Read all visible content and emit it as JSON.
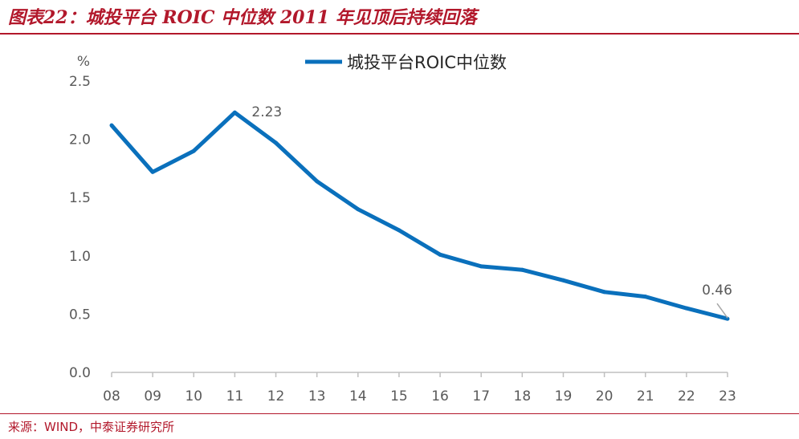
{
  "figure": {
    "title": "图表22：城投平台 ROIC 中位数 2011 年见顶后持续回落",
    "source": "来源：WIND，中泰证券研究所"
  },
  "colors": {
    "accent": "#b2182b",
    "line": "#0a70bc",
    "axis": "#bfbfbf",
    "text": "#595959"
  },
  "chart_data": {
    "type": "line",
    "title": "",
    "xlabel": "",
    "ylabel": "%",
    "categories": [
      "08",
      "09",
      "10",
      "11",
      "12",
      "13",
      "14",
      "15",
      "16",
      "17",
      "18",
      "19",
      "20",
      "21",
      "22",
      "23"
    ],
    "series": [
      {
        "name": "城投平台ROIC中位数",
        "values": [
          2.12,
          1.72,
          1.9,
          2.23,
          1.97,
          1.64,
          1.4,
          1.22,
          1.01,
          0.91,
          0.88,
          0.79,
          0.69,
          0.65,
          0.55,
          0.46
        ]
      }
    ],
    "yticks": [
      "0.0",
      "0.5",
      "1.0",
      "1.5",
      "2.0",
      "2.5"
    ],
    "ylim": [
      0,
      2.5
    ],
    "grid": false,
    "legend": "top-center",
    "data_labels": [
      {
        "category": "11",
        "text": "2.23"
      },
      {
        "category": "23",
        "text": "0.46"
      }
    ]
  }
}
